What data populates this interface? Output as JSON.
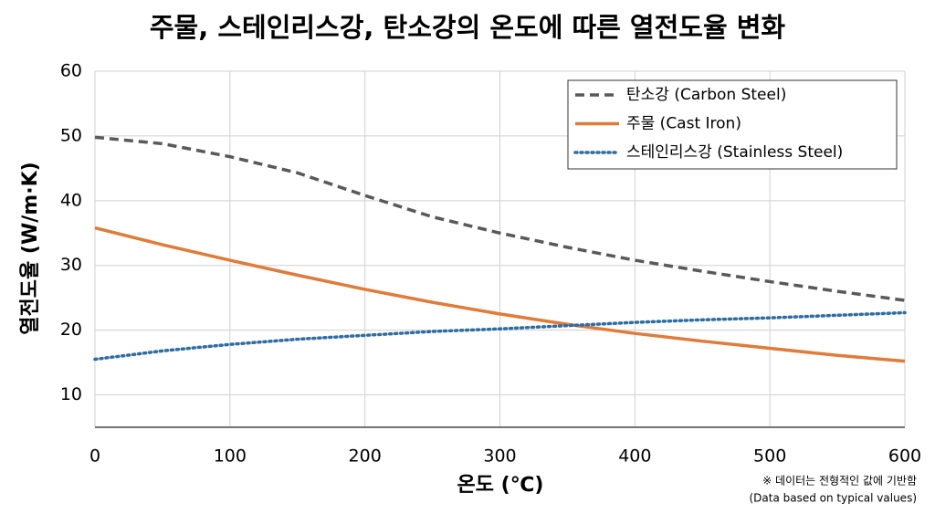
{
  "chart_data": {
    "type": "line",
    "title": "주물, 스테인리스강, 탄소강의 온도에 따른 열전도율 변화",
    "x_label": "온도 (℃)",
    "y_label": "열전도율 (W/m·K)",
    "x": [
      0,
      50,
      100,
      150,
      200,
      250,
      300,
      350,
      400,
      450,
      500,
      550,
      600
    ],
    "series": [
      {
        "name": "탄소강 (Carbon Steel)",
        "color": "#595959",
        "style": "dashed",
        "values": [
          49.8,
          48.8,
          46.8,
          44.3,
          40.8,
          37.5,
          35,
          32.8,
          30.8,
          29.1,
          27.5,
          26,
          24.6
        ]
      },
      {
        "name": "주물 (Cast Iron)",
        "color": "#e07b39",
        "style": "solid",
        "values": [
          35.8,
          33.2,
          30.8,
          28.5,
          26.3,
          24.3,
          22.5,
          20.9,
          19.5,
          18.3,
          17.2,
          16.1,
          15.2
        ]
      },
      {
        "name": "스테인리스강 (Stainless Steel)",
        "color": "#2e6da4",
        "style": "dotted",
        "values": [
          15.5,
          16.8,
          17.8,
          18.6,
          19.2,
          19.8,
          20.2,
          20.7,
          21.2,
          21.6,
          21.9,
          22.3,
          22.7
        ]
      }
    ],
    "xlim": [
      0,
      600
    ],
    "xticks": [
      0,
      100,
      200,
      300,
      400,
      500,
      600
    ],
    "ylim": [
      5,
      60
    ],
    "yticks": [
      10,
      20,
      30,
      40,
      50,
      60
    ],
    "grid": true,
    "legend": "top-right",
    "notes": [
      "※ 데이터는 전형적인 값에 기반함",
      "(Data based on typical values)"
    ]
  }
}
